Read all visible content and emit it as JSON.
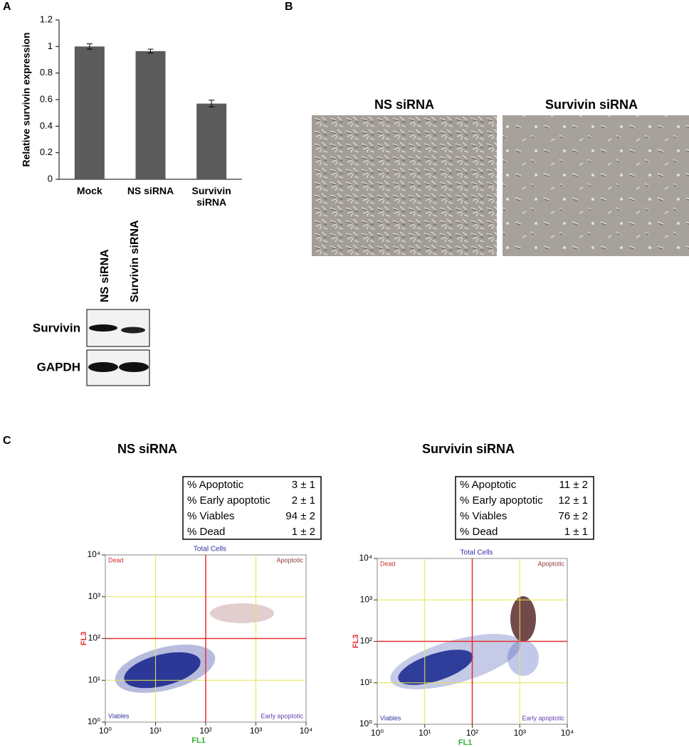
{
  "panel_labels": [
    "A",
    "B",
    "C"
  ],
  "micrographs": [
    {
      "label": "NS siRNA"
    },
    {
      "label": "Survivin siRNA"
    }
  ],
  "western_blot": {
    "lanes": [
      "NS siRNA",
      "Survivin siRNA"
    ],
    "rows": [
      "Survivin",
      "GAPDH"
    ]
  },
  "chart_data": [
    {
      "type": "bar",
      "ylabel": "Relative  survivin expression",
      "categories": [
        "Mock",
        "NS siRNA",
        "Survivin siRNA"
      ],
      "values": [
        1.0,
        0.965,
        0.57
      ],
      "errors": [
        0.02,
        0.015,
        0.025
      ],
      "color": "#5b5b5b",
      "ylim": [
        0,
        1.2
      ],
      "yticks": [
        0,
        0.2,
        0.4,
        0.6,
        0.8,
        1,
        1.2
      ],
      "grid": false
    },
    {
      "type": "scatter",
      "title": "NS siRNA",
      "xlabel": "FL1",
      "ylabel": "FL3",
      "top_label": "Total Cells",
      "quadrant_labels": [
        "Dead",
        "Apoptotic",
        "Viables",
        "Early apoptotic"
      ],
      "stats": [
        [
          "% Apoptotic",
          "3 ± 1"
        ],
        [
          "% Early apoptotic",
          "2 ± 1"
        ],
        [
          "% Viables",
          "94 ± 2"
        ],
        [
          "% Dead",
          "1 ± 2"
        ]
      ],
      "log_x": true,
      "log_y": true,
      "xlim": [
        1,
        10000
      ],
      "ylim": [
        1,
        10000
      ],
      "gate_x": 100,
      "gate_y": 100,
      "xticks": [
        {
          "value": 1,
          "label": "10⁰"
        },
        {
          "value": 10,
          "label": "10¹"
        },
        {
          "value": 100,
          "label": "10²"
        },
        {
          "value": 1000,
          "label": "10³"
        },
        {
          "value": 10000,
          "label": "10⁴"
        }
      ],
      "yticks": [
        {
          "value": 1,
          "label": "10⁰"
        },
        {
          "value": 10,
          "label": "10¹"
        },
        {
          "value": 100,
          "label": "10²"
        },
        {
          "value": 1000,
          "label": "10³"
        },
        {
          "value": 10000,
          "label": "10⁴"
        }
      ]
    },
    {
      "type": "scatter",
      "title": "Survivin siRNA",
      "xlabel": "FL1",
      "ylabel": "FL3",
      "top_label": "Total Cells",
      "quadrant_labels": [
        "Dead",
        "Apoptotic",
        "Viables",
        "Early apoptotic"
      ],
      "stats": [
        [
          "% Apoptotic",
          "11 ± 2"
        ],
        [
          "% Early apoptotic",
          "12 ± 1"
        ],
        [
          "% Viables",
          "76 ± 2"
        ],
        [
          "% Dead",
          "1 ± 1"
        ]
      ],
      "log_x": true,
      "log_y": true,
      "xlim": [
        1,
        10000
      ],
      "ylim": [
        1,
        10000
      ],
      "gate_x": 100,
      "gate_y": 100,
      "xticks": [
        {
          "value": 1,
          "label": "10⁰"
        },
        {
          "value": 10,
          "label": "10¹"
        },
        {
          "value": 100,
          "label": "10²"
        },
        {
          "value": 1000,
          "label": "10³"
        },
        {
          "value": 10000,
          "label": "10⁴"
        }
      ],
      "yticks": [
        {
          "value": 1,
          "label": "10⁰"
        },
        {
          "value": 10,
          "label": "10¹"
        },
        {
          "value": 100,
          "label": "10²"
        },
        {
          "value": 1000,
          "label": "10³"
        },
        {
          "value": 10000,
          "label": "10⁴"
        }
      ]
    }
  ]
}
